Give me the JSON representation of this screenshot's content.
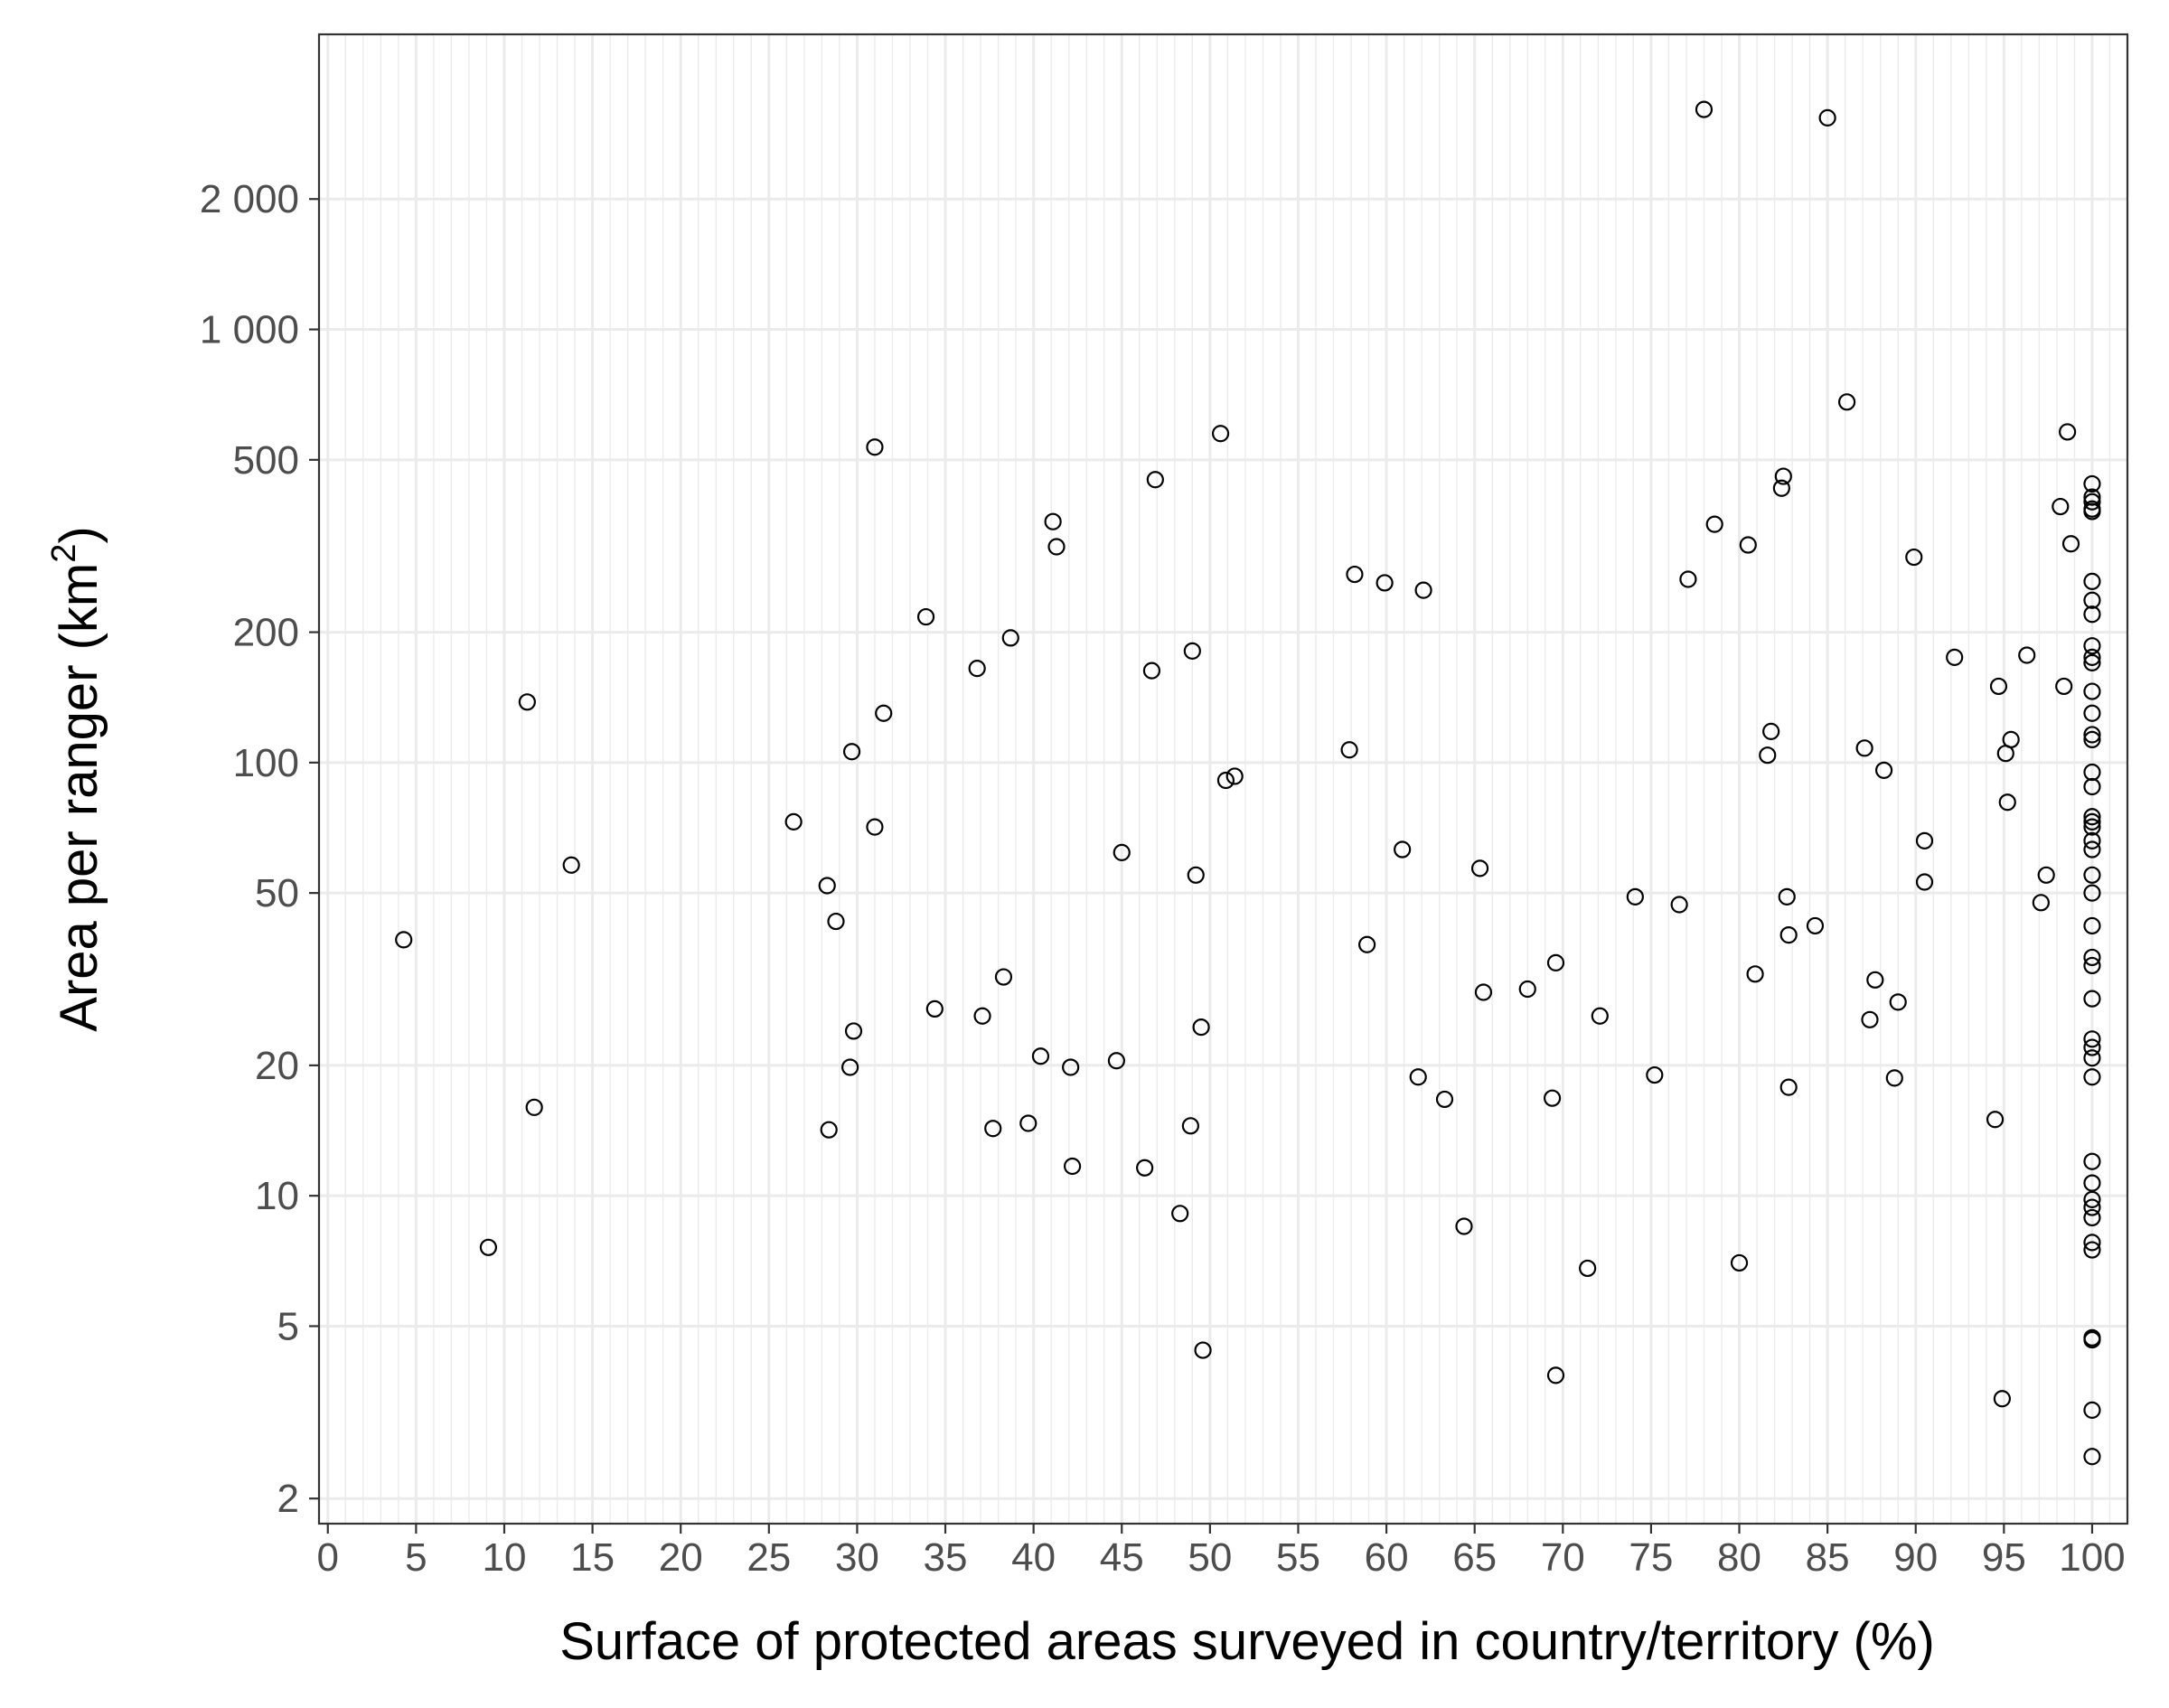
{
  "chart_data": {
    "type": "scatter",
    "xlabel": "Surface of protected areas surveyed in country/territory (%)",
    "ylabel_main": "Area per ranger (km",
    "ylabel_sup": "2",
    "ylabel_end": ")",
    "y_scale": "log10",
    "xlim": [
      -0.5,
      102
    ],
    "ylim": [
      1.75,
      4800
    ],
    "x_ticks": [
      0,
      5,
      10,
      15,
      20,
      25,
      30,
      35,
      40,
      45,
      50,
      55,
      60,
      65,
      70,
      75,
      80,
      85,
      90,
      95,
      100
    ],
    "x_tick_labels": [
      "0",
      "5",
      "10",
      "15",
      "20",
      "25",
      "30",
      "35",
      "40",
      "45",
      "50",
      "55",
      "60",
      "65",
      "70",
      "75",
      "80",
      "85",
      "90",
      "95",
      "100"
    ],
    "y_ticks": [
      2,
      5,
      10,
      20,
      50,
      100,
      200,
      500,
      1000,
      2000
    ],
    "y_tick_labels": [
      "2",
      "5",
      "10",
      "20",
      "50",
      "100",
      "200",
      "500",
      "1 000",
      "2 000"
    ],
    "grid": true,
    "colors": {
      "background": "#ffffff",
      "grid": "#ebebeb",
      "border": "#333333",
      "points": "#000000",
      "tick_text": "#4d4d4d"
    },
    "points": [
      [
        4.3,
        39
      ],
      [
        9.1,
        7.6
      ],
      [
        11.3,
        138
      ],
      [
        11.7,
        16
      ],
      [
        13.8,
        58
      ],
      [
        26.4,
        73
      ],
      [
        28.3,
        52
      ],
      [
        28.4,
        14.2
      ],
      [
        28.8,
        43
      ],
      [
        29.6,
        19.8
      ],
      [
        29.7,
        106
      ],
      [
        29.8,
        24
      ],
      [
        31.0,
        71
      ],
      [
        31.0,
        535
      ],
      [
        31.5,
        130
      ],
      [
        33.9,
        217
      ],
      [
        34.4,
        27
      ],
      [
        36.8,
        165
      ],
      [
        37.1,
        26
      ],
      [
        37.7,
        14.3
      ],
      [
        38.3,
        32
      ],
      [
        38.7,
        194
      ],
      [
        39.7,
        14.7
      ],
      [
        40.4,
        21
      ],
      [
        41.1,
        360
      ],
      [
        41.3,
        315
      ],
      [
        42.1,
        19.8
      ],
      [
        42.2,
        11.7
      ],
      [
        44.7,
        20.5
      ],
      [
        45.0,
        62
      ],
      [
        46.3,
        11.6
      ],
      [
        46.7,
        163
      ],
      [
        46.9,
        450
      ],
      [
        48.3,
        9.1
      ],
      [
        48.9,
        14.5
      ],
      [
        49.0,
        181
      ],
      [
        49.2,
        55
      ],
      [
        49.5,
        24.5
      ],
      [
        49.6,
        4.4
      ],
      [
        50.6,
        575
      ],
      [
        50.9,
        91
      ],
      [
        51.4,
        93
      ],
      [
        57.9,
        107
      ],
      [
        58.2,
        272
      ],
      [
        58.9,
        38
      ],
      [
        59.9,
        260
      ],
      [
        60.9,
        63
      ],
      [
        61.8,
        18.8
      ],
      [
        62.1,
        250
      ],
      [
        63.3,
        16.7
      ],
      [
        64.4,
        8.5
      ],
      [
        65.3,
        57
      ],
      [
        65.5,
        29.5
      ],
      [
        68.0,
        30
      ],
      [
        69.4,
        16.8
      ],
      [
        69.6,
        34.5
      ],
      [
        69.6,
        3.85
      ],
      [
        71.4,
        6.8
      ],
      [
        72.1,
        26
      ],
      [
        74.1,
        49
      ],
      [
        75.2,
        19
      ],
      [
        76.6,
        47
      ],
      [
        77.1,
        265
      ],
      [
        78.0,
        3220
      ],
      [
        78.6,
        355
      ],
      [
        80.0,
        7.0
      ],
      [
        80.5,
        318
      ],
      [
        80.9,
        32.5
      ],
      [
        81.6,
        104
      ],
      [
        81.8,
        118
      ],
      [
        82.4,
        430
      ],
      [
        82.5,
        458
      ],
      [
        82.7,
        49
      ],
      [
        82.8,
        40
      ],
      [
        82.8,
        17.8
      ],
      [
        84.3,
        42
      ],
      [
        85.0,
        3080
      ],
      [
        86.1,
        680
      ],
      [
        87.1,
        108
      ],
      [
        87.4,
        25.5
      ],
      [
        87.7,
        31.5
      ],
      [
        88.2,
        96
      ],
      [
        88.8,
        18.7
      ],
      [
        89.0,
        28
      ],
      [
        89.9,
        298
      ],
      [
        90.5,
        66
      ],
      [
        90.5,
        53
      ],
      [
        92.2,
        175
      ],
      [
        94.5,
        15
      ],
      [
        94.7,
        150
      ],
      [
        94.9,
        3.4
      ],
      [
        95.1,
        105
      ],
      [
        95.2,
        81
      ],
      [
        95.4,
        113
      ],
      [
        96.3,
        177
      ],
      [
        97.1,
        47.5
      ],
      [
        97.4,
        55
      ],
      [
        98.2,
        390
      ],
      [
        98.4,
        150
      ],
      [
        98.6,
        580
      ],
      [
        98.8,
        320
      ],
      [
        100,
        440
      ],
      [
        100,
        410
      ],
      [
        100,
        400
      ],
      [
        100,
        385
      ],
      [
        100,
        380
      ],
      [
        100,
        262
      ],
      [
        100,
        237
      ],
      [
        100,
        220
      ],
      [
        100,
        186
      ],
      [
        100,
        175
      ],
      [
        100,
        170
      ],
      [
        100,
        146
      ],
      [
        100,
        130
      ],
      [
        100,
        116
      ],
      [
        100,
        113
      ],
      [
        100,
        95
      ],
      [
        100,
        88
      ],
      [
        100,
        75
      ],
      [
        100,
        73
      ],
      [
        100,
        71
      ],
      [
        100,
        66
      ],
      [
        100,
        63
      ],
      [
        100,
        55
      ],
      [
        100,
        50
      ],
      [
        100,
        42
      ],
      [
        100,
        35.5
      ],
      [
        100,
        34
      ],
      [
        100,
        28.5
      ],
      [
        100,
        23
      ],
      [
        100,
        22
      ],
      [
        100,
        20.8
      ],
      [
        100,
        18.8
      ],
      [
        100,
        12
      ],
      [
        100,
        10.7
      ],
      [
        100,
        9.8
      ],
      [
        100,
        9.4
      ],
      [
        100,
        8.9
      ],
      [
        100,
        7.8
      ],
      [
        100,
        7.5
      ],
      [
        100,
        4.7
      ],
      [
        100,
        4.65
      ],
      [
        100,
        3.2
      ],
      [
        100,
        2.5
      ]
    ]
  }
}
